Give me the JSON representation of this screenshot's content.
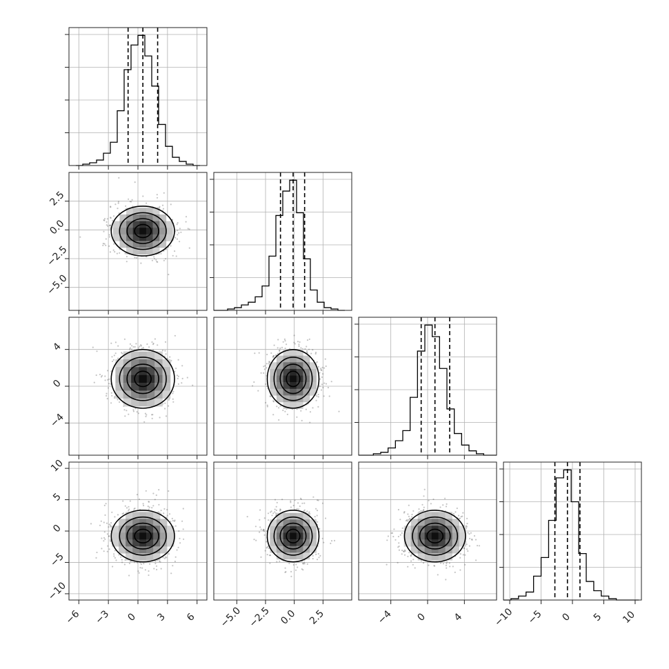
{
  "chart_data": {
    "type": "corner",
    "variables": [
      {
        "range": [
          -7,
          7
        ],
        "median": 0.5,
        "q16": -1.0,
        "q84": 2.0,
        "sigma": 1.5,
        "ticks": [
          -6,
          -3,
          0,
          3,
          6
        ],
        "tick_labels": [
          "−6",
          "−3",
          "0",
          "3",
          "6"
        ]
      },
      {
        "range": [
          -7,
          5
        ],
        "median": -0.1,
        "q16": -1.2,
        "q84": 0.9,
        "sigma": 1.05,
        "ticks": [
          -5.0,
          -2.5,
          0.0,
          2.5
        ],
        "tick_labels": [
          "−5.0",
          "−2.5",
          "0.0",
          "2.5"
        ]
      },
      {
        "range": [
          -7.5,
          7.5
        ],
        "median": 0.8,
        "q16": -0.7,
        "q84": 2.4,
        "sigma": 1.55,
        "ticks": [
          -4,
          0,
          4
        ],
        "tick_labels": [
          "−4",
          "0",
          "4"
        ]
      },
      {
        "range": [
          -11,
          11
        ],
        "median": -0.8,
        "q16": -2.8,
        "q84": 1.2,
        "sigma": 2.0,
        "ticks": [
          -10,
          -5,
          0,
          5,
          10
        ],
        "tick_labels": [
          "−10",
          "−5",
          "0",
          "5",
          "10"
        ]
      }
    ],
    "histograms": [
      {
        "bins": [
          -6.3,
          -5.6,
          -4.9,
          -4.2,
          -3.5,
          -2.8,
          -2.1,
          -1.4,
          -0.7,
          0.0,
          0.7,
          1.4,
          2.1,
          2.8,
          3.5,
          4.2,
          4.9,
          5.6,
          6.3
        ],
        "counts": [
          0,
          1,
          2,
          4,
          9,
          17,
          40,
          70,
          88,
          95,
          80,
          58,
          30,
          14,
          6,
          3,
          1,
          0
        ]
      },
      {
        "bins": [
          -7.0,
          -6.4,
          -5.8,
          -5.2,
          -4.6,
          -4.0,
          -3.4,
          -2.8,
          -2.2,
          -1.6,
          -1.0,
          -0.4,
          0.2,
          0.8,
          1.4,
          2.0,
          2.6,
          3.2,
          3.8,
          4.4
        ],
        "counts": [
          0,
          0,
          1,
          2,
          4,
          6,
          10,
          18,
          40,
          70,
          88,
          96,
          72,
          38,
          15,
          6,
          2,
          1,
          0
        ]
      },
      {
        "bins": [
          -7.5,
          -6.7,
          -5.9,
          -5.1,
          -4.3,
          -3.5,
          -2.7,
          -1.9,
          -1.1,
          -0.3,
          0.5,
          1.3,
          2.1,
          2.9,
          3.7,
          4.5,
          5.3,
          6.1,
          6.9,
          7.5
        ],
        "counts": [
          0,
          0,
          1,
          2,
          5,
          10,
          17,
          40,
          72,
          90,
          82,
          60,
          32,
          15,
          7,
          3,
          1,
          0,
          0
        ]
      },
      {
        "bins": [
          -11,
          -9.8,
          -8.6,
          -7.4,
          -6.2,
          -5.0,
          -3.8,
          -2.6,
          -1.4,
          -0.2,
          1.0,
          2.2,
          3.4,
          4.6,
          5.8,
          7.0,
          8.2,
          9.4,
          10.6
        ],
        "counts": [
          0,
          1,
          3,
          6,
          18,
          32,
          60,
          92,
          98,
          74,
          35,
          14,
          7,
          3,
          1,
          0,
          0,
          0
        ]
      }
    ]
  }
}
